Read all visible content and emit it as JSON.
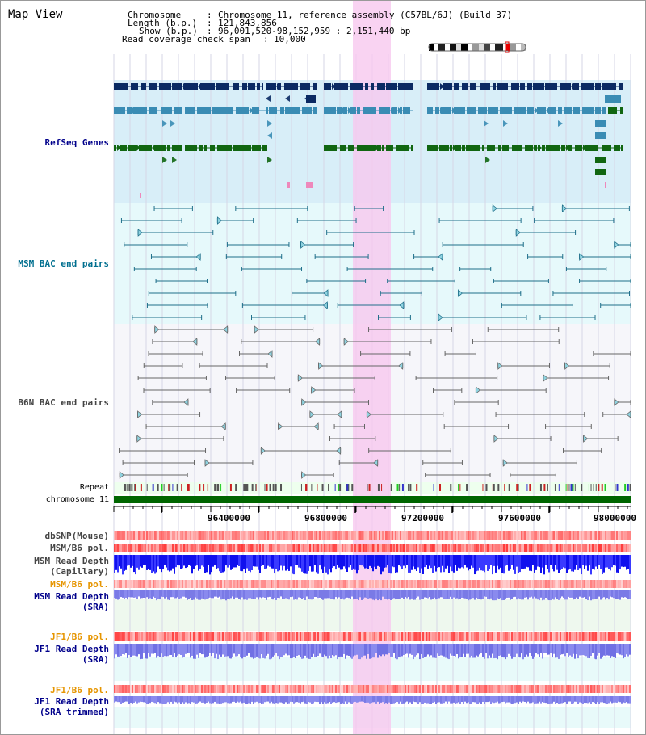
{
  "page": {
    "title": "Map View",
    "info": {
      "chromosome_key": "Chromosome",
      "chromosome_val": "Chromosome 11, reference assembly (C57BL/6J) (Build 37)",
      "length_key": "Length (b.p.)",
      "length_val": "121,843,856",
      "show_key": "Show (b.p.)",
      "show_val": "96,001,520-98,152,959 : 2,151,440 bp",
      "coverage_key": "Read coverage check span",
      "coverage_val": "10,000"
    }
  },
  "tracks": {
    "refseq": "RefSeq Genes",
    "msm_bac": "MSM BAC end pairs",
    "b6n_bac": "B6N BAC end pairs",
    "repeat": "Repeat",
    "chromosome": "chromosome 11",
    "dbsnp": "dbSNP(Mouse)",
    "msm_b6_pol_1": "MSM/B6 pol.",
    "msm_read_depth_cap_1": "MSM Read Depth",
    "msm_read_depth_cap_2": "(Capillary)",
    "msm_b6_pol_2": "MSM/B6 pol.",
    "msm_read_depth_sra_1": "MSM Read Depth",
    "msm_read_depth_sra_2": "(SRA)",
    "jf1_b6_pol_1": "JF1/B6 pol.",
    "jf1_read_depth_sra_1": "JF1 Read Depth",
    "jf1_read_depth_sra_2": "(SRA)",
    "jf1_b6_pol_2": "JF1/B6 pol.",
    "jf1_read_depth_trim_1": "JF1 Read Depth",
    "jf1_read_depth_trim_2": "(SRA trimmed)"
  },
  "axis": {
    "ticks": [
      "96400000",
      "96800000",
      "97200000",
      "97600000",
      "98000000"
    ]
  },
  "colors": {
    "refseq_bg": "#d8eef8",
    "msm_bac_bg": "#e6f9fb",
    "b6n_bac_bg": "#f6f6fa",
    "highlight": "#f8c8ef",
    "gene_navy": "#0b2a63",
    "gene_teal": "#3a8cb4",
    "gene_green": "#116611",
    "bac_line": "#1f6f8a",
    "b6n_line": "#666666",
    "chrom_bar": "#006600",
    "label_blue": "#00008b",
    "label_teal": "#006f8f",
    "label_orange": "#e69500",
    "label_gray": "#444444"
  }
}
